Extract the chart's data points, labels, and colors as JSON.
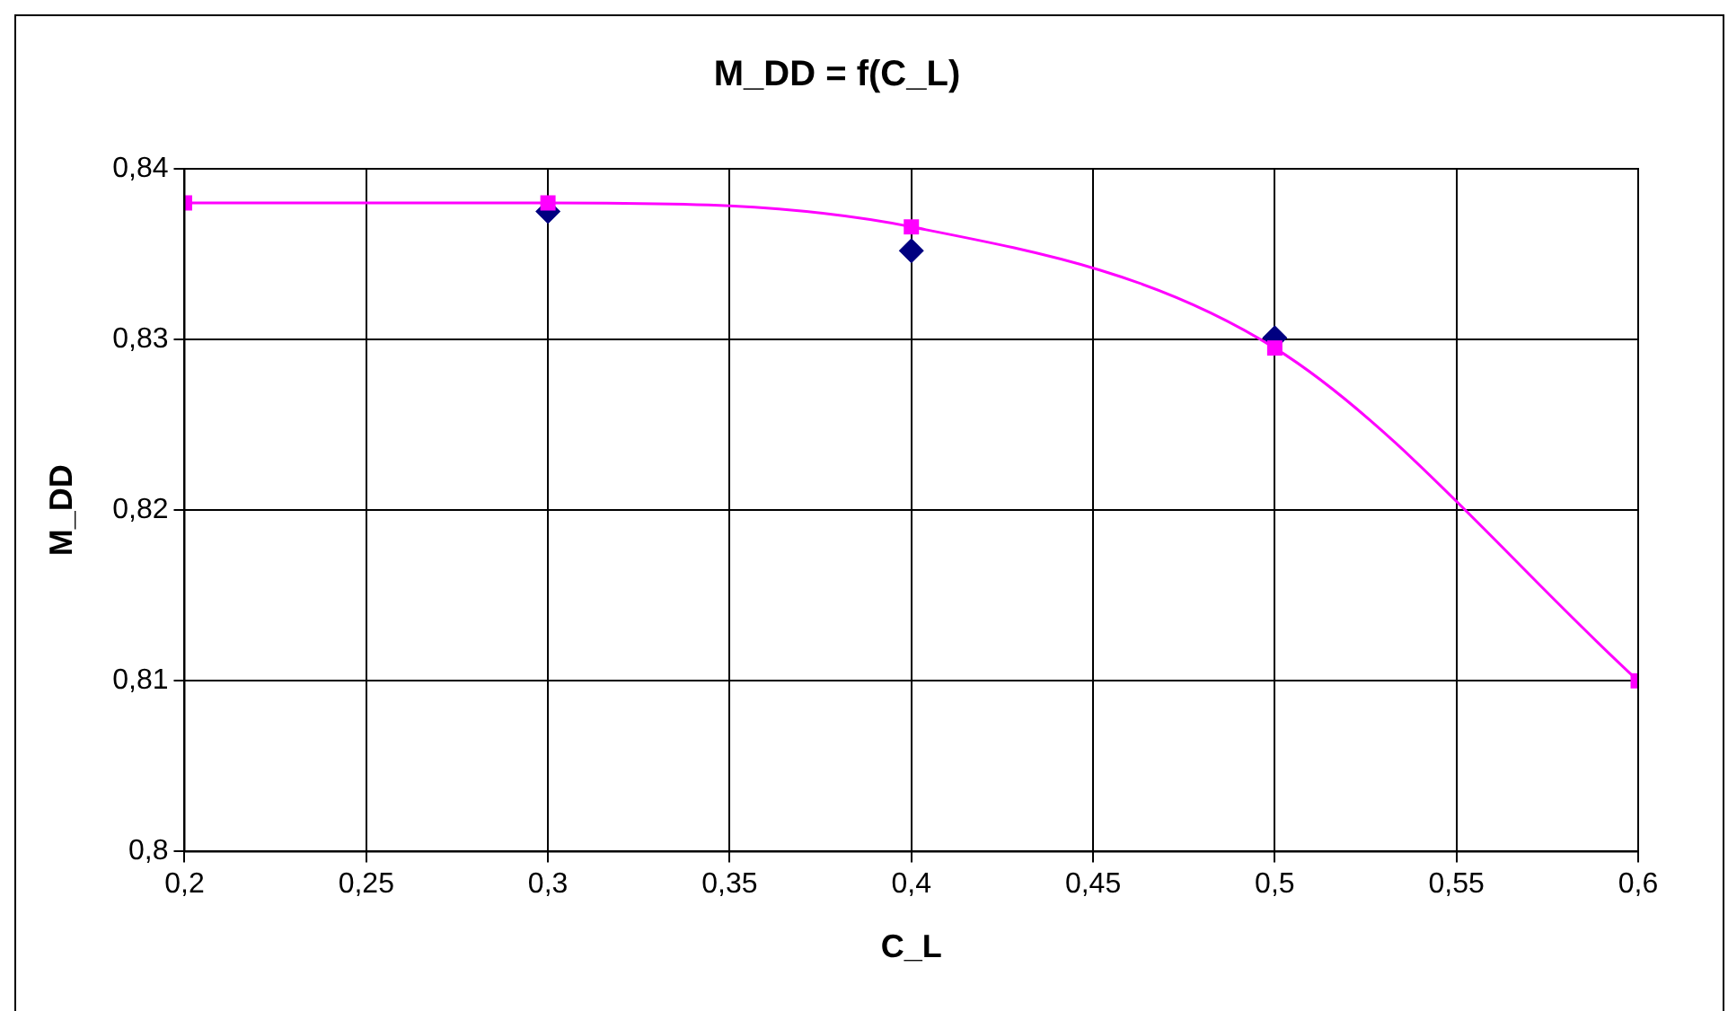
{
  "chart_data": {
    "type": "line",
    "title": "M_DD = f(C_L)",
    "xlabel": "C_L",
    "ylabel": "M_DD",
    "x": [
      0.2,
      0.3,
      0.4,
      0.5,
      0.6
    ],
    "xlim": [
      0.2,
      0.6
    ],
    "xticks": [
      {
        "value": 0.2,
        "label": "0,2"
      },
      {
        "value": 0.25,
        "label": "0,25"
      },
      {
        "value": 0.3,
        "label": "0,3"
      },
      {
        "value": 0.35,
        "label": "0,35"
      },
      {
        "value": 0.4,
        "label": "0,4"
      },
      {
        "value": 0.45,
        "label": "0,45"
      },
      {
        "value": 0.5,
        "label": "0,5"
      },
      {
        "value": 0.55,
        "label": "0,55"
      },
      {
        "value": 0.6,
        "label": "0,6"
      }
    ],
    "ylim": [
      0.8,
      0.84
    ],
    "yticks": [
      {
        "value": 0.8,
        "label": "0,8"
      },
      {
        "value": 0.81,
        "label": "0,81"
      },
      {
        "value": 0.82,
        "label": "0,82"
      },
      {
        "value": 0.83,
        "label": "0,83"
      },
      {
        "value": 0.84,
        "label": "0,84"
      }
    ],
    "grid": true,
    "series": [
      {
        "type": "scatter",
        "color": "#000080",
        "marker": "diamond",
        "values": [
          null,
          0.8375,
          0.8352,
          0.8301,
          null
        ]
      },
      {
        "color": "#ff00ff",
        "marker": "square",
        "line_style": "solid",
        "values": [
          0.838,
          0.838,
          0.8366,
          0.8295,
          0.81
        ]
      }
    ]
  }
}
